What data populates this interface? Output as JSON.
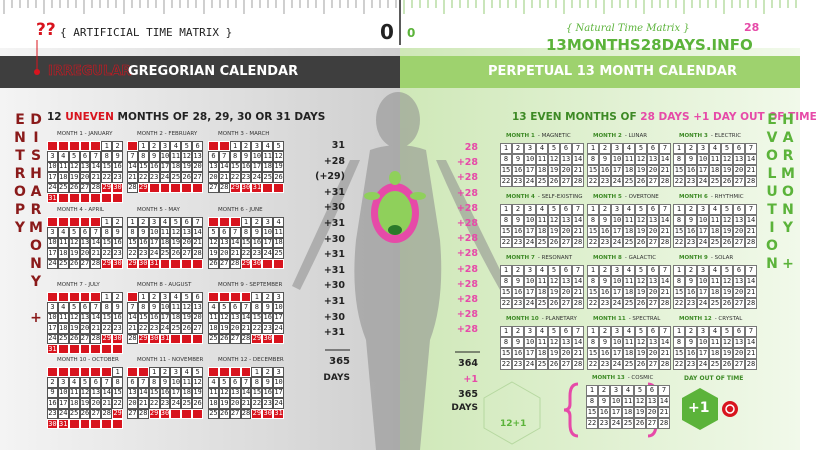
{
  "header": {
    "marks": "??",
    "left_matrix": "{ ARTIFICIAL TIME MATRIX }",
    "left_zero": "0",
    "right_zero": "0",
    "right_matrix": "{ Natural Time Matrix }",
    "right_matrix_num": "28",
    "site": "13MONTHS28DAYS.INFO"
  },
  "left": {
    "band_accent": "IRREGULAR",
    "band_title": "GREGORIAN CALENDAR",
    "heading": [
      "12",
      "UNEVEN",
      "MONTHS OF 28, 29, 30 OR 31 DAYS"
    ],
    "vertical": "DISHARMONY + ENTROPY",
    "months": [
      {
        "label": "MONTH 1 - JANUARY",
        "length": 31,
        "start": 5
      },
      {
        "label": "MONTH 2 - FEBRUARY",
        "length": 29,
        "start": 1
      },
      {
        "label": "MONTH 3 - MARCH",
        "length": 31,
        "start": 2
      },
      {
        "label": "MONTH 4 - APRIL",
        "length": 30,
        "start": 5
      },
      {
        "label": "MONTH 5 - MAY",
        "length": 31,
        "start": 0
      },
      {
        "label": "MONTH 6 - JUNE",
        "length": 30,
        "start": 3
      },
      {
        "label": "MONTH 7 - JULY",
        "length": 31,
        "start": 5
      },
      {
        "label": "MONTH 8 - AUGUST",
        "length": 31,
        "start": 1
      },
      {
        "label": "MONTH 9 - SEPTEMBER",
        "length": 30,
        "start": 4
      },
      {
        "label": "MONTH 10 - OCTOBER",
        "length": 31,
        "start": 6
      },
      {
        "label": "MONTH 11 - NOVEMBER",
        "length": 30,
        "start": 2
      },
      {
        "label": "MONTH 12 - DECEMBER",
        "length": 31,
        "start": 4
      }
    ],
    "sums": [
      "31",
      "+28",
      "(+29)",
      "+31",
      "+30",
      "+31",
      "+30",
      "+31",
      "+31",
      "+30",
      "+31",
      "+30",
      "+31"
    ],
    "total": "365",
    "total_unit": "DAYS"
  },
  "right": {
    "band_title": "PERPETUAL 13 MONTH CALENDAR",
    "heading": [
      "13 EVEN MONTHS OF",
      "28 DAYS",
      "+1 DAY OUT OF TIME"
    ],
    "vertical": "HARMONY + EVOLUTION",
    "months": [
      {
        "number": "MONTH 1",
        "name": "- MAGNETIC",
        "length": 28
      },
      {
        "number": "MONTH 2",
        "name": "- LUNAR",
        "length": 28
      },
      {
        "number": "MONTH 3",
        "name": "- ELECTRIC",
        "length": 28
      },
      {
        "number": "MONTH 4",
        "name": "- SELF-EXISTING",
        "length": 28
      },
      {
        "number": "MONTH 5",
        "name": "- OVERTONE",
        "length": 28
      },
      {
        "number": "MONTH 6",
        "name": "- RHYTHMIC",
        "length": 28
      },
      {
        "number": "MONTH 7",
        "name": "- RESONANT",
        "length": 28
      },
      {
        "number": "MONTH 8",
        "name": "- GALACTIC",
        "length": 28
      },
      {
        "number": "MONTH 9",
        "name": "- SOLAR",
        "length": 28
      },
      {
        "number": "MONTH 10",
        "name": "- PLANETARY",
        "length": 28
      },
      {
        "number": "MONTH 11",
        "name": "- SPECTRAL",
        "length": 28
      },
      {
        "number": "MONTH 12",
        "name": "- CRYSTAL",
        "length": 28
      },
      {
        "number": "MONTH 13",
        "name": "- COSMIC",
        "length": 28
      }
    ],
    "sums": [
      "28",
      "+28",
      "+28",
      "+28",
      "+28",
      "+28",
      "+28",
      "+28",
      "+28",
      "+28",
      "+28",
      "+28",
      "+28"
    ],
    "totals": [
      "364",
      "+1",
      "365"
    ],
    "total_unit": "DAYS",
    "cycle": "12+1",
    "day_out_label": "DAY OUT OF TIME",
    "day_out": "+1"
  },
  "day_numbers": [
    1,
    2,
    3,
    4,
    5,
    6,
    7,
    8,
    9,
    10,
    11,
    12,
    13,
    14,
    15,
    16,
    17,
    18,
    19,
    20,
    21,
    22,
    23,
    24,
    25,
    26,
    27,
    28,
    29,
    30,
    31
  ]
}
